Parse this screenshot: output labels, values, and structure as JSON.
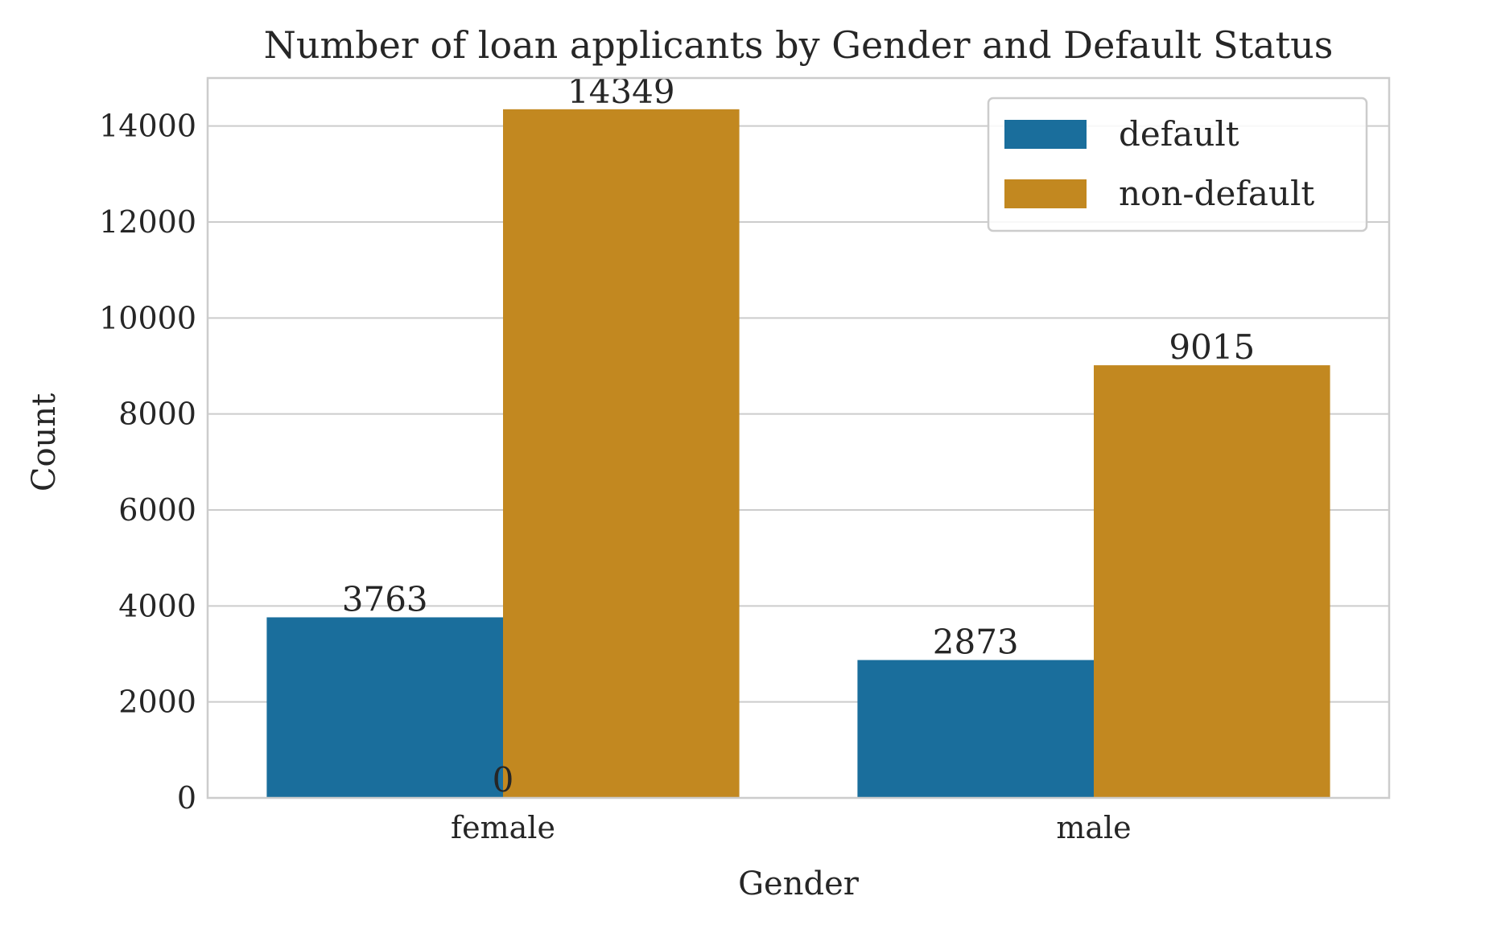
{
  "chart_data": {
    "type": "bar",
    "title": "Number of loan applicants by Gender and Default Status",
    "xlabel": "Gender",
    "ylabel": "Count",
    "categories": [
      "female",
      "male"
    ],
    "series": [
      {
        "name": "default",
        "values": [
          3763,
          2873
        ],
        "color": "#1a6e9c"
      },
      {
        "name": "non-default",
        "values": [
          14349,
          9015
        ],
        "color": "#c28820"
      }
    ],
    "extra_labels": [
      "0"
    ],
    "ylim": [
      0,
      15000
    ],
    "yticks": [
      0,
      2000,
      4000,
      6000,
      8000,
      10000,
      12000,
      14000
    ],
    "yticks_labels": [
      "0",
      "2000",
      "4000",
      "6000",
      "8000",
      "10000",
      "12000",
      "14000"
    ],
    "grid": true,
    "legend_position": "top-right",
    "frame_color": "#cccccc"
  }
}
